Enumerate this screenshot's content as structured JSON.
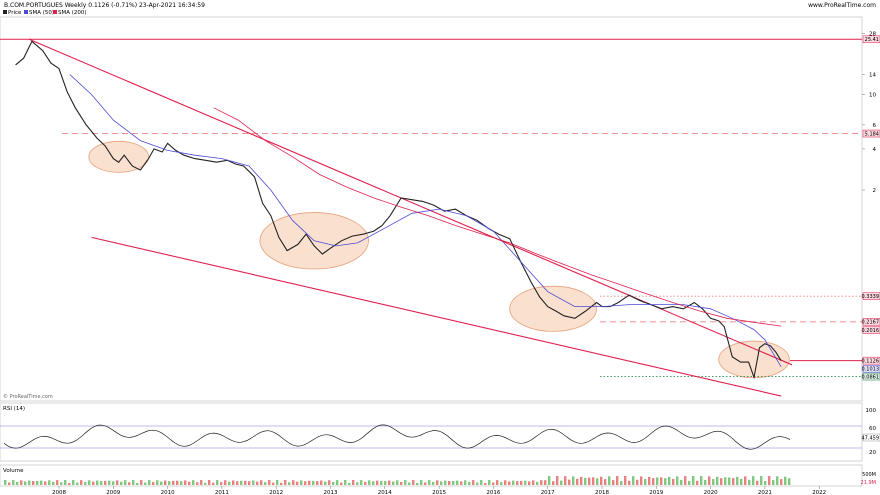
{
  "header": {
    "title": "B.COM.PORTUGUES Weekly 0.1126 (-0.71%) 23-Apr-2021 16:34:59",
    "brand": "www.ProRealTime.com",
    "legend": [
      {
        "label": "Price",
        "color": "#222222"
      },
      {
        "label": "SMA (50)",
        "color": "#4b4bd6"
      },
      {
        "label": "SMA (200)",
        "color": "#e0204d"
      }
    ]
  },
  "watermark": "© ProRealTime.com",
  "price_badges": [
    {
      "text": "25.41",
      "value": 25.41,
      "color": "#e0204d"
    },
    {
      "text": "5.184",
      "value": 5.184,
      "color": "#e0204d"
    },
    {
      "text": "0.3339",
      "value": 0.3339,
      "color": "#e0204d"
    },
    {
      "text": "0.2167",
      "value": 0.2167,
      "color": "#e0204d"
    },
    {
      "text": "0.2016",
      "value": 0.2016,
      "color": "#e0204d"
    },
    {
      "text": "0.1126",
      "value": 0.1126,
      "color": "#e0204d"
    },
    {
      "text": "0.1013",
      "value": 0.1013,
      "color": "#4b4bd6"
    },
    {
      "text": "0.0861",
      "value": 0.0861,
      "color": "#2e8b57"
    }
  ],
  "panels": {
    "rsi": {
      "title": "RSI (14)",
      "ticks": [
        "100",
        "60",
        "20"
      ],
      "value_text": "47.459"
    },
    "volume": {
      "title": "Volume",
      "ticks": [
        "500M",
        "21.9M"
      ]
    }
  },
  "chart_data": {
    "type": "line",
    "scale": "log",
    "x_ticks": [
      "2008",
      "2009",
      "2010",
      "2011",
      "2012",
      "2013",
      "2014",
      "2015",
      "2016",
      "2017",
      "2018",
      "2019",
      "2020",
      "2021",
      "2022"
    ],
    "y_ticks": [
      "28",
      "14",
      "10",
      "6",
      "4",
      "2"
    ],
    "ylim": [
      0.06,
      34
    ],
    "grid": false,
    "legend_position": "top-left",
    "series": [
      {
        "name": "Price",
        "color": "#222222",
        "x": [
          2007.2,
          2007.35,
          2007.5,
          2007.7,
          2007.85,
          2008.0,
          2008.15,
          2008.3,
          2008.5,
          2008.7,
          2008.85,
          2009.0,
          2009.1,
          2009.2,
          2009.35,
          2009.5,
          2009.65,
          2009.75,
          2009.9,
          2010.0,
          2010.15,
          2010.3,
          2010.5,
          2010.7,
          2010.9,
          2011.1,
          2011.25,
          2011.4,
          2011.6,
          2011.75,
          2011.9,
          2012.05,
          2012.2,
          2012.4,
          2012.55,
          2012.7,
          2012.85,
          2013.0,
          2013.2,
          2013.4,
          2013.6,
          2013.8,
          2013.95,
          2014.1,
          2014.3,
          2014.5,
          2014.7,
          2014.9,
          2015.1,
          2015.3,
          2015.5,
          2015.7,
          2015.9,
          2016.1,
          2016.3,
          2016.5,
          2016.7,
          2016.85,
          2017.0,
          2017.15,
          2017.3,
          2017.5,
          2017.7,
          2017.9,
          2018.0,
          2018.15,
          2018.3,
          2018.5,
          2018.7,
          2018.9,
          2019.1,
          2019.3,
          2019.5,
          2019.7,
          2019.85,
          2020.0,
          2020.15,
          2020.25,
          2020.4,
          2020.55,
          2020.7,
          2020.8,
          2020.9,
          2021.0,
          2021.1,
          2021.2,
          2021.3
        ],
        "values": [
          16.5,
          18.5,
          24.5,
          21.0,
          17.0,
          15.5,
          10.5,
          8.0,
          6.0,
          4.8,
          4.2,
          3.4,
          3.2,
          3.6,
          3.0,
          2.8,
          3.4,
          4.0,
          3.8,
          4.4,
          3.9,
          3.6,
          3.4,
          3.3,
          3.2,
          3.3,
          3.1,
          3.0,
          2.5,
          1.6,
          1.3,
          0.9,
          0.72,
          0.8,
          0.95,
          0.78,
          0.68,
          0.75,
          0.85,
          0.92,
          0.95,
          1.0,
          1.1,
          1.3,
          1.75,
          1.7,
          1.65,
          1.55,
          1.4,
          1.45,
          1.3,
          1.2,
          1.05,
          0.95,
          0.88,
          0.6,
          0.42,
          0.33,
          0.28,
          0.26,
          0.24,
          0.23,
          0.26,
          0.3,
          0.28,
          0.28,
          0.3,
          0.34,
          0.31,
          0.29,
          0.27,
          0.28,
          0.27,
          0.3,
          0.27,
          0.23,
          0.22,
          0.2,
          0.12,
          0.11,
          0.11,
          0.085,
          0.14,
          0.15,
          0.145,
          0.13,
          0.1126
        ]
      },
      {
        "name": "SMA (50)",
        "color": "#4b4bd6",
        "x": [
          2008.2,
          2008.6,
          2009.0,
          2009.5,
          2010.0,
          2010.5,
          2011.0,
          2011.5,
          2011.9,
          2012.3,
          2012.7,
          2013.1,
          2013.5,
          2014.0,
          2014.5,
          2015.0,
          2015.5,
          2016.0,
          2016.5,
          2017.0,
          2017.5,
          2018.0,
          2018.5,
          2019.0,
          2019.5,
          2020.0,
          2020.4,
          2020.8,
          2021.0,
          2021.3
        ],
        "values": [
          14.0,
          10.0,
          6.5,
          4.6,
          3.9,
          3.6,
          3.4,
          3.0,
          2.0,
          1.2,
          0.85,
          0.78,
          0.82,
          1.05,
          1.35,
          1.45,
          1.3,
          1.0,
          0.6,
          0.36,
          0.28,
          0.28,
          0.29,
          0.29,
          0.29,
          0.27,
          0.23,
          0.19,
          0.16,
          0.1013
        ]
      },
      {
        "name": "SMA (200)",
        "color": "#e0204d",
        "x": [
          2010.85,
          2011.3,
          2011.8,
          2012.3,
          2012.8,
          2013.3,
          2013.8,
          2014.3,
          2014.8,
          2015.3,
          2015.8,
          2016.3,
          2016.8,
          2017.3,
          2017.8,
          2018.3,
          2018.8,
          2019.3,
          2019.8,
          2020.3,
          2020.8,
          2021.3
        ],
        "values": [
          8.0,
          6.5,
          4.6,
          3.5,
          2.6,
          2.1,
          1.75,
          1.5,
          1.3,
          1.1,
          0.95,
          0.82,
          0.68,
          0.57,
          0.48,
          0.41,
          0.35,
          0.3,
          0.26,
          0.23,
          0.215,
          0.2016
        ]
      }
    ],
    "trendlines": [
      {
        "x": [
          2007.45,
          2021.5
        ],
        "values": [
          25.41,
          0.105
        ],
        "color": "#e0204d"
      },
      {
        "x": [
          2008.6,
          2021.3
        ],
        "values": [
          0.9,
          0.062
        ],
        "color": "#e0204d"
      }
    ],
    "levels": [
      {
        "value": 25.41,
        "style": "solid",
        "color": "#e0204d"
      },
      {
        "value": 5.184,
        "style": "dashed",
        "color": "#e88080"
      },
      {
        "value": 0.3339,
        "style": "dotted",
        "color": "#e88080"
      },
      {
        "value": 0.2167,
        "style": "dashed",
        "color": "#e88080"
      },
      {
        "value": 0.1126,
        "style": "solid",
        "color": "#e0204d"
      },
      {
        "value": 0.0861,
        "style": "dotted",
        "color": "#2e8b57"
      }
    ],
    "highlight_zones": [
      {
        "x_from": 2008.55,
        "x_to": 2009.65,
        "center_value": 3.5
      },
      {
        "x_from": 2011.7,
        "x_to": 2013.7,
        "center_value": 0.85
      },
      {
        "x_from": 2016.3,
        "x_to": 2017.9,
        "center_value": 0.27
      },
      {
        "x_from": 2020.15,
        "x_to": 2021.45,
        "center_value": 0.115
      }
    ]
  }
}
